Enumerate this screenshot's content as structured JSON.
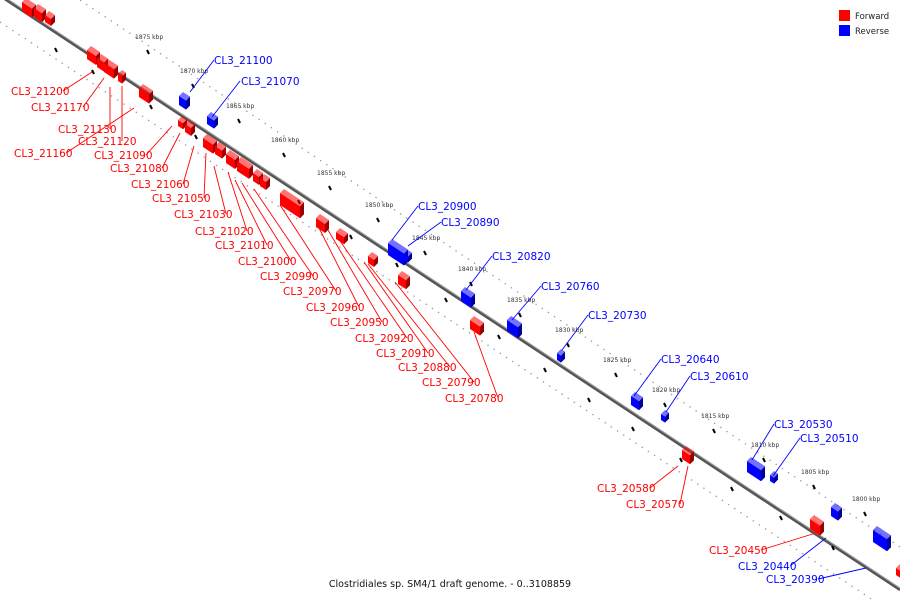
{
  "legend": {
    "forward_label": "Forward",
    "reverse_label": "Reverse",
    "forward_color": "#ff0000",
    "reverse_color": "#0000ff"
  },
  "caption": "Clostridiales sp. SM4/1 draft genome. - 0..3108859",
  "axis_color": "#808080",
  "scale_ticks": [
    "1875 kbp",
    "1870 kbp",
    "1865 kbp",
    "1860 kbp",
    "1855 kbp",
    "1850 kbp",
    "1845 kbp",
    "1840 kbp",
    "1835 kbp",
    "1830 kbp",
    "1825 kbp",
    "1820 kbp",
    "1815 kbp",
    "1810 kbp",
    "1805 kbp",
    "1800 kbp"
  ],
  "forward_genes": [
    "CL3_21200",
    "CL3_21170",
    "CL3_21130",
    "CL3_21120",
    "CL3_21160",
    "CL3_21090",
    "CL3_21080",
    "CL3_21060",
    "CL3_21050",
    "CL3_21030",
    "CL3_21020",
    "CL3_21010",
    "CL3_21000",
    "CL3_20990",
    "CL3_20970",
    "CL3_20960",
    "CL3_20950",
    "CL3_20920",
    "CL3_20910",
    "CL3_20880",
    "CL3_20790",
    "CL3_20780",
    "CL3_20580",
    "CL3_20570",
    "CL3_20450"
  ],
  "reverse_genes": [
    "CL3_21100",
    "CL3_21070",
    "CL3_20900",
    "CL3_20890",
    "CL3_20820",
    "CL3_20760",
    "CL3_20730",
    "CL3_20640",
    "CL3_20610",
    "CL3_20530",
    "CL3_20510",
    "CL3_20440",
    "CL3_20390"
  ]
}
